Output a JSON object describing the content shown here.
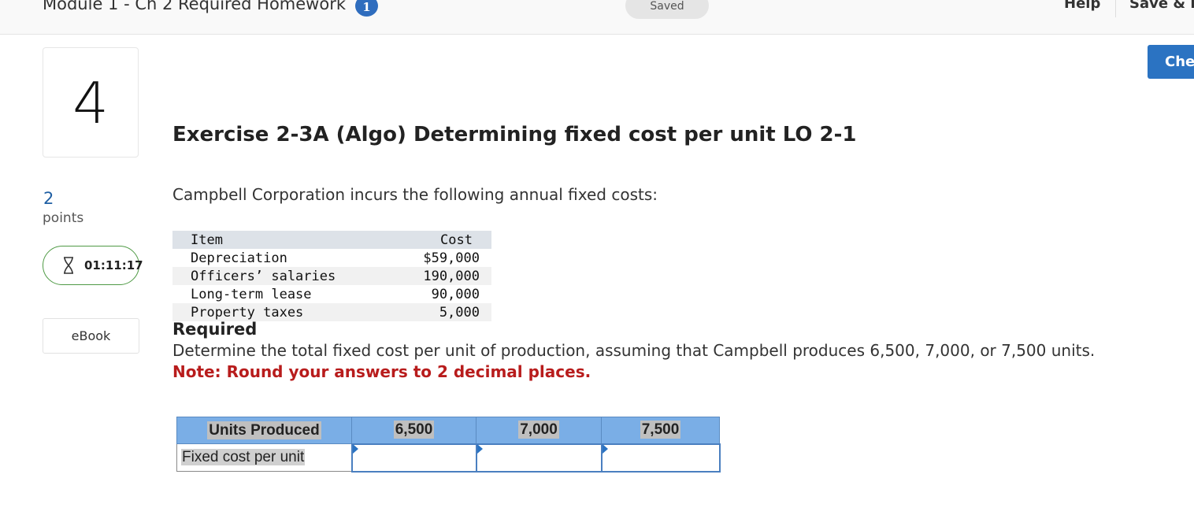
{
  "header": {
    "module_title": "Module 1 - Ch 2 Required Homework",
    "info_badge": "1",
    "saved_status": "Saved",
    "help_label": "Help",
    "save_exit_label": "Save & E",
    "check_label": "Che"
  },
  "sidebar": {
    "question_number": "4",
    "points_value": "2",
    "points_label": "points",
    "timer": "01:11:17",
    "ebook_label": "eBook"
  },
  "question": {
    "title": "Exercise 2-3A (Algo) Determining fixed cost per unit LO 2-1",
    "intro": "Campbell Corporation incurs the following annual fixed costs:",
    "cost_table": {
      "headers": [
        "Item",
        "Cost"
      ],
      "rows": [
        {
          "item": "Depreciation",
          "cost": "$59,000"
        },
        {
          "item": "Officers’ salaries",
          "cost": "190,000"
        },
        {
          "item": "Long-term lease",
          "cost": "90,000"
        },
        {
          "item": "Property taxes",
          "cost": "5,000"
        }
      ]
    },
    "required_label": "Required",
    "instruction": "Determine the total fixed cost per unit of production, assuming that Campbell produces 6,500, 7,000, or 7,500 units.",
    "note": "Note: Round your answers to 2 decimal places."
  },
  "answer_grid": {
    "header_label": "Units Produced",
    "columns": [
      "6,500",
      "7,000",
      "7,500"
    ],
    "row_label": "Fixed cost per unit",
    "values": [
      "",
      "",
      ""
    ]
  }
}
